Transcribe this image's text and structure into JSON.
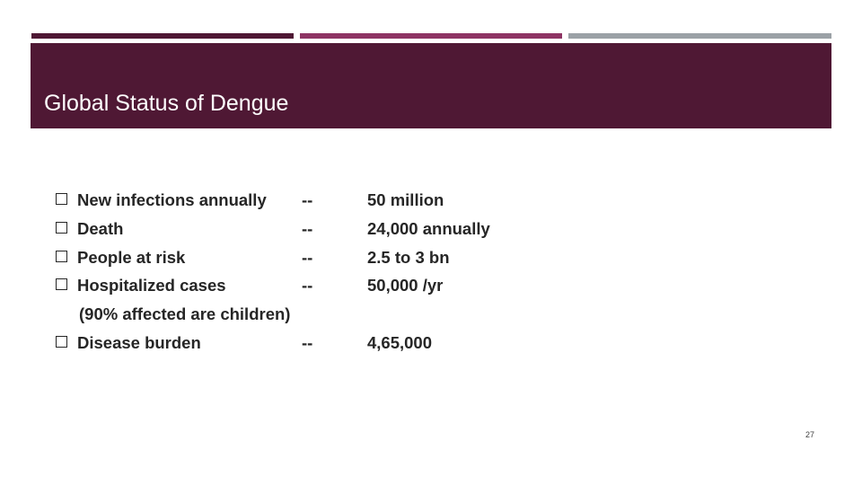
{
  "slide": {
    "title": "Global Status of Dengue",
    "page_number": "27"
  },
  "accent_bars": [
    {
      "color": "#4f1834"
    },
    {
      "color": "#8e3464"
    },
    {
      "color": "#9ba1a6"
    }
  ],
  "items": [
    {
      "label": "New infections annually",
      "dash": "--",
      "value": "50 million"
    },
    {
      "label": "Death",
      "dash": "--",
      "value": "24,000 annually"
    },
    {
      "label": "People at risk",
      "dash": "--",
      "value": "2.5 to 3 bn"
    },
    {
      "label": "Hospitalized cases",
      "dash": "--",
      "value": "50,000 /yr"
    },
    {
      "label": "Disease burden",
      "dash": "--",
      "value": "4,65,000"
    }
  ],
  "note": "(90% affected are children)",
  "colors": {
    "title_band": "#4f1834",
    "text": "#262626"
  }
}
